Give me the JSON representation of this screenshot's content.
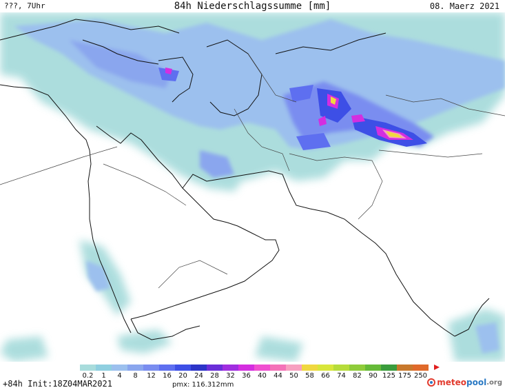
{
  "header": {
    "left": "???, 7Uhr",
    "title": "84h Niederschlagssumme [mm]",
    "right": "08. Maerz 2021"
  },
  "legend": {
    "labels": [
      "0.2",
      "1",
      "4",
      "8",
      "12",
      "16",
      "20",
      "24",
      "28",
      "32",
      "36",
      "40",
      "44",
      "50",
      "58",
      "66",
      "74",
      "82",
      "90",
      "125",
      "175",
      "250"
    ],
    "colors": [
      "#a8dcdc",
      "#8fcfe0",
      "#9cc0ee",
      "#8aa6ee",
      "#7a8df0",
      "#5e6ff0",
      "#3d4fe6",
      "#2c34c8",
      "#6a2ed8",
      "#a02ee0",
      "#d42ee0",
      "#f04fd0",
      "#f472b8",
      "#f7a0c0",
      "#f0d840",
      "#d8e63a",
      "#b6dc3a",
      "#8fcc3a",
      "#66ba38",
      "#3a9c3c",
      "#c8782c",
      "#e06a2a"
    ],
    "arrow_color": "#e01e1e"
  },
  "footer": {
    "left": "+84h Init:18Z04MAR2021",
    "mid": "pmx: 116.312mm"
  },
  "logo": {
    "part1": "meteo",
    "part2": "pool",
    "part3": ".org"
  }
}
